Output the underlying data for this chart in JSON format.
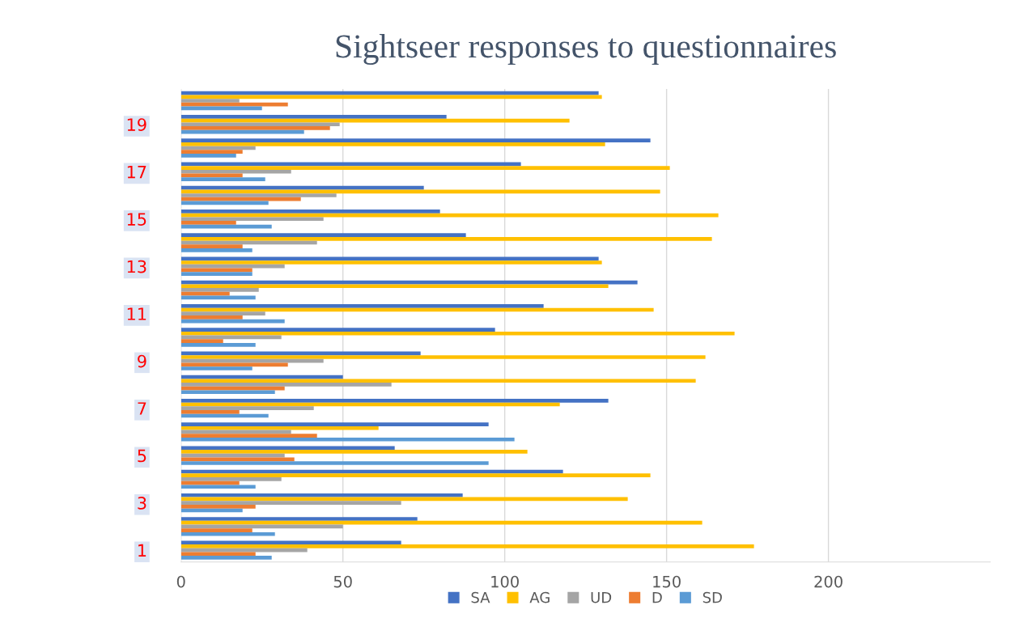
{
  "chart_data": {
    "type": "bar",
    "orientation": "horizontal",
    "title": "Sightseer responses to questionnaires",
    "categories": [
      null,
      "19",
      null,
      "17",
      null,
      "15",
      null,
      "13",
      null,
      "11",
      null,
      "9",
      null,
      "7",
      null,
      "5",
      null,
      "3",
      null,
      "1"
    ],
    "series": [
      {
        "name": "SA",
        "color": "#4472c4",
        "values": [
          129,
          82,
          145,
          105,
          75,
          80,
          88,
          129,
          141,
          112,
          97,
          74,
          50,
          132,
          95,
          66,
          118,
          87,
          73,
          68
        ]
      },
      {
        "name": "AG",
        "color": "#ffc000",
        "values": [
          130,
          120,
          131,
          151,
          148,
          166,
          164,
          130,
          132,
          146,
          171,
          162,
          159,
          117,
          61,
          107,
          145,
          138,
          161,
          177
        ]
      },
      {
        "name": "UD",
        "color": "#a5a5a5",
        "values": [
          18,
          49,
          23,
          34,
          48,
          44,
          42,
          32,
          24,
          26,
          31,
          44,
          65,
          41,
          34,
          32,
          31,
          68,
          50,
          39
        ]
      },
      {
        "name": "D",
        "color": "#ed7d31",
        "values": [
          33,
          46,
          19,
          19,
          37,
          17,
          19,
          22,
          15,
          19,
          13,
          33,
          32,
          18,
          42,
          35,
          18,
          23,
          22,
          23
        ]
      },
      {
        "name": "SD",
        "color": "#5b9bd5",
        "values": [
          25,
          38,
          17,
          26,
          27,
          28,
          22,
          22,
          23,
          32,
          23,
          22,
          29,
          27,
          103,
          95,
          23,
          19,
          29,
          28
        ]
      }
    ],
    "xlim": [
      0,
      250
    ],
    "xticks": [
      0,
      50,
      100,
      150,
      200
    ],
    "grid": "x",
    "legend": "bottom"
  }
}
